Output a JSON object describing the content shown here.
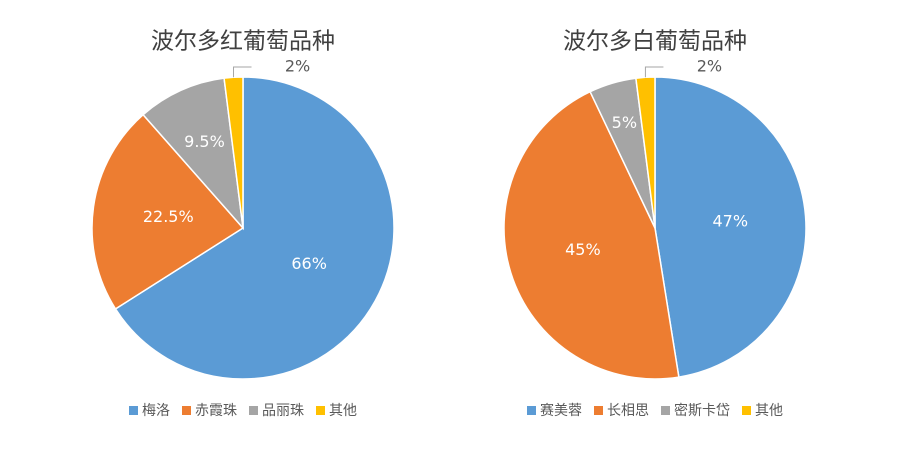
{
  "chart_data": [
    {
      "type": "pie",
      "title": "波尔多红葡萄品种",
      "categories": [
        "梅洛",
        "赤霞珠",
        "品丽珠",
        "其他"
      ],
      "values": [
        66,
        22.5,
        9.5,
        2
      ],
      "value_labels": [
        "66%",
        "22.5%",
        "9.5%",
        "2%"
      ],
      "colors": [
        "#5b9bd5",
        "#ed7d31",
        "#a5a5a5",
        "#ffc000"
      ],
      "legend": "bottom"
    },
    {
      "type": "pie",
      "title": "波尔多白葡萄品种",
      "categories": [
        "赛美蓉",
        "长相思",
        "密斯卡岱",
        "其他"
      ],
      "values": [
        47,
        45,
        5,
        2
      ],
      "value_labels": [
        "47%",
        "45%",
        "5%",
        "2%"
      ],
      "colors": [
        "#5b9bd5",
        "#ed7d31",
        "#a5a5a5",
        "#ffc000"
      ],
      "legend": "bottom"
    }
  ]
}
